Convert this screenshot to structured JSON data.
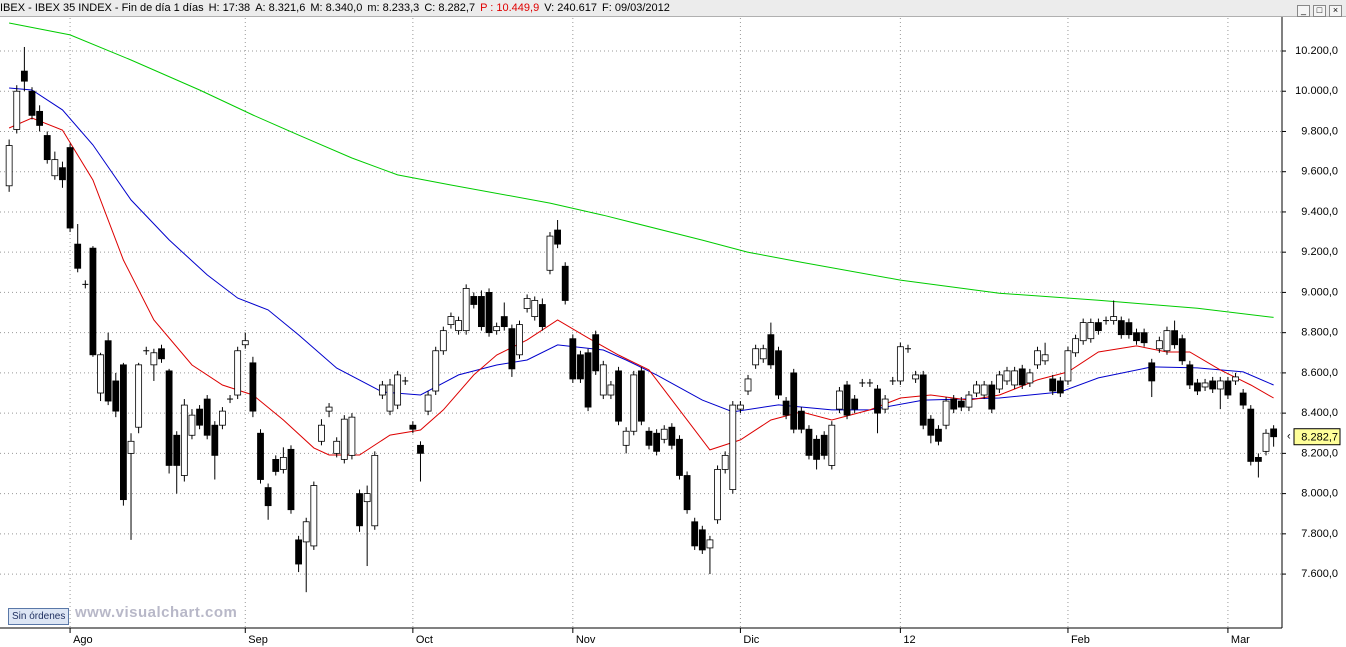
{
  "header": [
    {
      "text": "IBEX - IBEX 35 INDEX - Fin de día 1 días",
      "color": "#000000"
    },
    {
      "text": "H: 17:38",
      "color": "#000000"
    },
    {
      "text": "A: 8.321,6",
      "color": "#000000"
    },
    {
      "text": "M: 8.340,0",
      "color": "#000000"
    },
    {
      "text": "m: 8.233,3",
      "color": "#000000"
    },
    {
      "text": "C: 8.282,7",
      "color": "#000000"
    },
    {
      "text": "P : 10.449,9",
      "color": "#e00000"
    },
    {
      "text": "V: 240.617",
      "color": "#000000"
    },
    {
      "text": "F: 09/03/2012",
      "color": "#000000"
    }
  ],
  "button": "Sin órdenes",
  "watermark": "www.visualchart.com",
  "chart_data": {
    "type": "candlestick",
    "grid": true,
    "xlim": [
      -1.2,
      167.1
    ],
    "ylim": [
      7332,
      10364
    ],
    "xticks": [
      {
        "value": 8,
        "label": "Ago"
      },
      {
        "value": 31,
        "label": "Sep"
      },
      {
        "value": 53,
        "label": "Oct"
      },
      {
        "value": 74,
        "label": "Nov"
      },
      {
        "value": 96,
        "label": "Dic"
      },
      {
        "value": 117,
        "label": "12"
      },
      {
        "value": 139,
        "label": "Feb"
      },
      {
        "value": 160,
        "label": "Mar"
      }
    ],
    "yticks": [
      {
        "value": 7600,
        "label": "7.600,0"
      },
      {
        "value": 7800,
        "label": "7.800,0"
      },
      {
        "value": 8000,
        "label": "8.000,0"
      },
      {
        "value": 8200,
        "label": "8.200,0"
      },
      {
        "value": 8400,
        "label": "8.400,0"
      },
      {
        "value": 8600,
        "label": "8.600,0"
      },
      {
        "value": 8800,
        "label": "8.800,0"
      },
      {
        "value": 9000,
        "label": "9.000,0"
      },
      {
        "value": 9200,
        "label": "9.200,0"
      },
      {
        "value": 9400,
        "label": "9.400,0"
      },
      {
        "value": 9600,
        "label": "9.600,0"
      },
      {
        "value": 9800,
        "label": "9.800,0"
      },
      {
        "value": 10000,
        "label": "10.000,0"
      },
      {
        "value": 10200,
        "label": "10.200,0"
      }
    ],
    "last": {
      "value": 8282.7,
      "label": "8.282,7"
    },
    "up_color": "#ffffff",
    "down_color": "#000000",
    "open": [
      9530,
      9810,
      10100,
      10000,
      9900,
      9780,
      9580,
      9620,
      9720,
      9240,
      9040,
      9220,
      8500,
      8760,
      8560,
      8640,
      8200,
      8330,
      8710,
      8640,
      8720,
      8610,
      8290,
      8090,
      8290,
      8420,
      8470,
      8340,
      8340,
      8470,
      8490,
      8740,
      8650,
      8300,
      8030,
      8170,
      8120,
      8220,
      7770,
      7760,
      7740,
      8260,
      8410,
      8200,
      8170,
      8190,
      8000,
      7960,
      7840,
      8490,
      8410,
      8440,
      8560,
      8340,
      8240,
      8410,
      8510,
      8710,
      8840,
      8810,
      8810,
      8980,
      8980,
      9000,
      8810,
      8880,
      8820,
      8690,
      8920,
      8880,
      8940,
      9110,
      9310,
      9130,
      8770,
      8690,
      8700,
      8790,
      8490,
      8490,
      8610,
      8240,
      8310,
      8610,
      8310,
      8300,
      8270,
      8330,
      8270,
      8090,
      7860,
      7820,
      7730,
      7870,
      8120,
      8020,
      8420,
      8510,
      8640,
      8670,
      8790,
      8710,
      8460,
      8600,
      8410,
      8320,
      8270,
      8290,
      8140,
      8420,
      8540,
      8470,
      8550,
      8550,
      8520,
      8420,
      8560,
      8560,
      8720,
      8570,
      8590,
      8370,
      8320,
      8340,
      8470,
      8460,
      8430,
      8500,
      8490,
      8540,
      8520,
      8560,
      8540,
      8620,
      8550,
      8640,
      8660,
      8570,
      8560,
      8560,
      8700,
      8760,
      8770,
      8850,
      8860,
      8860,
      8860,
      8850,
      8800,
      8800,
      8650,
      8720,
      8710,
      8810,
      8770,
      8640,
      8550,
      8530,
      8560,
      8520,
      8560,
      8560,
      8500,
      8420,
      8180,
      8210,
      8321.6
    ],
    "high": [
      9760,
      10030,
      10220,
      10020,
      9930,
      9800,
      9700,
      9650,
      9740,
      9340,
      9060,
      9230,
      8700,
      8800,
      8600,
      8650,
      8300,
      8650,
      8730,
      8720,
      8740,
      8620,
      8310,
      8470,
      8420,
      8440,
      8490,
      8360,
      8430,
      8490,
      8730,
      8800,
      8680,
      8320,
      8050,
      8190,
      8230,
      8240,
      7790,
      7880,
      8060,
      8370,
      8450,
      8280,
      8390,
      8400,
      8020,
      8040,
      8210,
      8560,
      8570,
      8610,
      8580,
      8360,
      8260,
      8510,
      8730,
      8830,
      8900,
      8880,
      9040,
      9000,
      9010,
      9020,
      8850,
      8950,
      8840,
      8860,
      8990,
      8980,
      8970,
      9300,
      9360,
      9150,
      8790,
      8710,
      8720,
      8810,
      8660,
      8560,
      8630,
      8330,
      8610,
      8630,
      8330,
      8320,
      8340,
      8350,
      8290,
      8110,
      7880,
      7840,
      7790,
      8140,
      8210,
      8460,
      8460,
      8590,
      8740,
      8740,
      8850,
      8730,
      8480,
      8620,
      8430,
      8340,
      8290,
      8310,
      8360,
      8530,
      8560,
      8490,
      8570,
      8570,
      8540,
      8490,
      8580,
      8750,
      8740,
      8610,
      8610,
      8390,
      8340,
      8480,
      8490,
      8480,
      8510,
      8560,
      8560,
      8560,
      8610,
      8630,
      8630,
      8640,
      8620,
      8730,
      8750,
      8590,
      8580,
      8730,
      8790,
      8870,
      8870,
      8870,
      8880,
      8960,
      8880,
      8870,
      8820,
      8820,
      8670,
      8780,
      8830,
      8860,
      8790,
      8660,
      8570,
      8570,
      8580,
      8580,
      8580,
      8600,
      8520,
      8440,
      8200,
      8320,
      8340
    ],
    "low": [
      9500,
      9790,
      10000,
      9860,
      9800,
      9640,
      9560,
      9520,
      9300,
      9100,
      9020,
      8680,
      8460,
      8440,
      8380,
      7940,
      7770,
      8300,
      8690,
      8560,
      8650,
      8100,
      8000,
      8060,
      8270,
      8320,
      8270,
      8070,
      8320,
      8450,
      8470,
      8720,
      8380,
      8050,
      7870,
      8090,
      8100,
      7900,
      7610,
      7510,
      7720,
      8240,
      8380,
      8180,
      8150,
      8170,
      7810,
      7640,
      7820,
      8470,
      8390,
      8420,
      8540,
      8300,
      8060,
      8390,
      8490,
      8690,
      8820,
      8790,
      8790,
      8920,
      8810,
      8780,
      8790,
      8810,
      8580,
      8670,
      8900,
      8860,
      8810,
      9090,
      9220,
      8940,
      8550,
      8550,
      8410,
      8590,
      8470,
      8470,
      8340,
      8200,
      8290,
      8340,
      8220,
      8190,
      8250,
      8220,
      8070,
      7900,
      7720,
      7700,
      7600,
      7850,
      8100,
      8000,
      8400,
      8490,
      8620,
      8650,
      8620,
      8470,
      8370,
      8300,
      8300,
      8170,
      8120,
      8170,
      8120,
      8400,
      8370,
      8400,
      8530,
      8530,
      8300,
      8400,
      8540,
      8540,
      8700,
      8550,
      8320,
      8250,
      8240,
      8320,
      8400,
      8410,
      8410,
      8480,
      8470,
      8400,
      8500,
      8540,
      8520,
      8520,
      8530,
      8620,
      8640,
      8490,
      8480,
      8540,
      8680,
      8740,
      8750,
      8790,
      8840,
      8840,
      8770,
      8770,
      8740,
      8730,
      8480,
      8700,
      8690,
      8720,
      8640,
      8520,
      8490,
      8510,
      8500,
      8420,
      8470,
      8540,
      8420,
      8140,
      8080,
      8190,
      8233.3
    ],
    "close": [
      9730,
      10000,
      10050,
      9880,
      9830,
      9660,
      9660,
      9560,
      9320,
      9120,
      9040,
      8690,
      8690,
      8460,
      8410,
      7970,
      8260,
      8640,
      8710,
      8700,
      8670,
      8140,
      8140,
      8440,
      8390,
      8340,
      8290,
      8190,
      8410,
      8470,
      8710,
      8760,
      8410,
      8070,
      7940,
      8110,
      8180,
      7920,
      7650,
      7860,
      8040,
      8340,
      8430,
      8260,
      8370,
      8380,
      7840,
      8000,
      8190,
      8540,
      8540,
      8590,
      8560,
      8320,
      8200,
      8490,
      8710,
      8810,
      8880,
      8860,
      9020,
      8940,
      8830,
      8800,
      8830,
      8830,
      8620,
      8840,
      8970,
      8960,
      8830,
      9280,
      9240,
      8960,
      8570,
      8570,
      8430,
      8610,
      8640,
      8540,
      8360,
      8310,
      8590,
      8360,
      8240,
      8210,
      8320,
      8240,
      8090,
      7920,
      7740,
      7720,
      7770,
      8120,
      8190,
      8440,
      8440,
      8570,
      8720,
      8720,
      8640,
      8490,
      8390,
      8320,
      8320,
      8190,
      8170,
      8190,
      8340,
      8510,
      8390,
      8420,
      8550,
      8550,
      8400,
      8470,
      8560,
      8730,
      8720,
      8590,
      8340,
      8290,
      8260,
      8460,
      8420,
      8430,
      8490,
      8540,
      8540,
      8420,
      8590,
      8610,
      8610,
      8540,
      8600,
      8710,
      8690,
      8510,
      8500,
      8710,
      8770,
      8850,
      8850,
      8810,
      8860,
      8880,
      8790,
      8790,
      8760,
      8750,
      8560,
      8760,
      8810,
      8740,
      8660,
      8540,
      8510,
      8550,
      8520,
      8560,
      8490,
      8580,
      8440,
      8160,
      8160,
      8300,
      8282.7
    ],
    "lines": [
      {
        "color": "#00cc00",
        "x": [
          0,
          8,
          16,
          25,
          32,
          38,
          45,
          51,
          58,
          71,
          78,
          91,
          97,
          104,
          117,
          130,
          143,
          156,
          166
        ],
        "values": [
          10339,
          10280,
          10155,
          10006,
          9882,
          9782,
          9668,
          9584,
          9534,
          9444,
          9384,
          9260,
          9200,
          9150,
          9061,
          8996,
          8961,
          8921,
          8876
        ]
      },
      {
        "color": "#0000cc",
        "x": [
          0,
          3,
          7,
          11,
          16,
          21,
          26,
          30,
          34,
          38,
          43,
          49,
          54,
          59,
          64,
          68,
          72,
          78,
          81,
          85,
          91,
          95,
          101,
          108,
          113,
          120,
          130,
          138,
          143,
          150,
          156,
          162,
          166
        ],
        "values": [
          10016,
          10006,
          9907,
          9733,
          9460,
          9261,
          9087,
          8972,
          8913,
          8789,
          8624,
          8505,
          8490,
          8590,
          8639,
          8664,
          8739,
          8714,
          8664,
          8590,
          8465,
          8406,
          8441,
          8416,
          8416,
          8465,
          8475,
          8505,
          8575,
          8630,
          8625,
          8605,
          8540
        ]
      },
      {
        "color": "#dd0000",
        "x": [
          0,
          3,
          7,
          11,
          15,
          19,
          24,
          28,
          32,
          36,
          40,
          42,
          46,
          50,
          54,
          57,
          61,
          64,
          68,
          72,
          76,
          80,
          84,
          88,
          92,
          96,
          100,
          104,
          108,
          113,
          117,
          121,
          126,
          130,
          135,
          139,
          143,
          148,
          152,
          155,
          159,
          163,
          166
        ],
        "values": [
          9817,
          9867,
          9807,
          9559,
          9161,
          8863,
          8639,
          8540,
          8490,
          8366,
          8227,
          8192,
          8192,
          8291,
          8316,
          8416,
          8590,
          8689,
          8764,
          8863,
          8774,
          8689,
          8615,
          8416,
          8217,
          8267,
          8366,
          8406,
          8366,
          8416,
          8475,
          8490,
          8465,
          8490,
          8565,
          8605,
          8704,
          8734,
          8704,
          8704,
          8615,
          8540,
          8475
        ]
      }
    ]
  }
}
